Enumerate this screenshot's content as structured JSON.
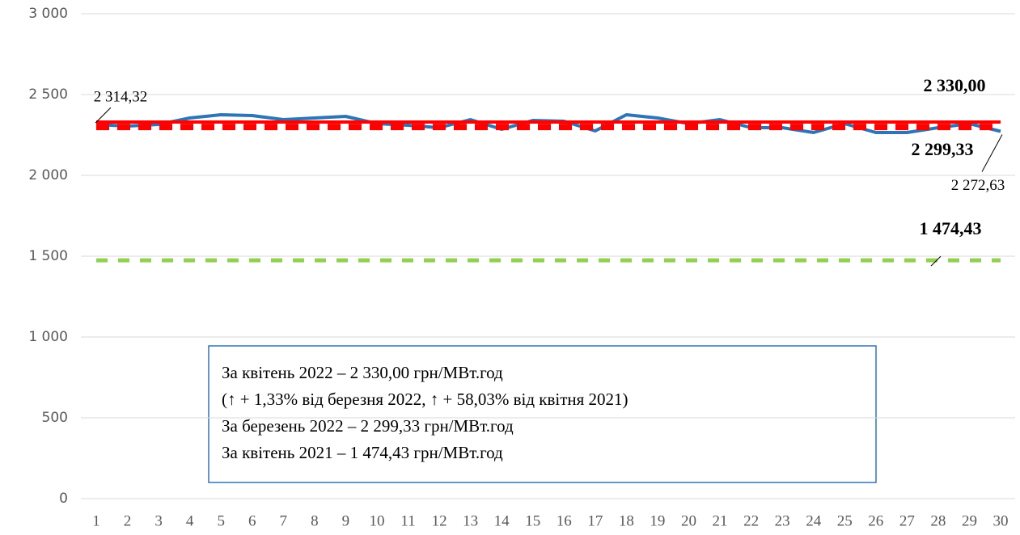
{
  "chart_data": {
    "type": "line",
    "categories": [
      1,
      2,
      3,
      4,
      5,
      6,
      7,
      8,
      9,
      10,
      11,
      12,
      13,
      14,
      15,
      16,
      17,
      18,
      19,
      20,
      21,
      22,
      23,
      24,
      25,
      26,
      27,
      28,
      29,
      30
    ],
    "ylim": [
      0,
      3000
    ],
    "yticks": [
      0,
      500,
      {
        "value": 1000,
        "label": "1 000"
      },
      {
        "value": 1500,
        "label": "1 500"
      },
      {
        "value": 2000,
        "label": "2 000"
      },
      {
        "value": 2500,
        "label": "2 500"
      },
      {
        "value": 3000,
        "label": "3 000"
      }
    ],
    "grid": true,
    "series": [
      {
        "color": "#2e75b6",
        "style": "solid",
        "values": [
          2314.32,
          2305,
          2315,
          2355,
          2375,
          2370,
          2345,
          2355,
          2365,
          2320,
          2310,
          2295,
          2345,
          2285,
          2340,
          2335,
          2275,
          2375,
          2355,
          2320,
          2345,
          2295,
          2295,
          2265,
          2320,
          2265,
          2265,
          2295,
          2320,
          2272.63
        ],
        "value_labels": [
          "2 314,32",
          null,
          null,
          null,
          null,
          null,
          null,
          null,
          null,
          null,
          null,
          null,
          null,
          null,
          null,
          null,
          null,
          null,
          null,
          null,
          null,
          null,
          null,
          null,
          null,
          null,
          null,
          null,
          null,
          "2 272,63"
        ]
      },
      {
        "color": "#ff0000",
        "style": "solid",
        "values": [
          2330,
          2330,
          2330,
          2330,
          2330,
          2330,
          2330,
          2330,
          2330,
          2330,
          2330,
          2330,
          2330,
          2330,
          2330,
          2330,
          2330,
          2330,
          2330,
          2330,
          2330,
          2330,
          2330,
          2330,
          2330,
          2330,
          2330,
          2330,
          2330,
          2330
        ],
        "value_labels": [
          null,
          null,
          null,
          null,
          null,
          null,
          null,
          null,
          null,
          null,
          null,
          null,
          null,
          null,
          null,
          null,
          null,
          null,
          null,
          null,
          null,
          null,
          null,
          null,
          null,
          null,
          null,
          null,
          null,
          "2 330,00"
        ]
      },
      {
        "color": "#ff0000",
        "style": "dashed",
        "values": [
          2299.33,
          2299.33,
          2299.33,
          2299.33,
          2299.33,
          2299.33,
          2299.33,
          2299.33,
          2299.33,
          2299.33,
          2299.33,
          2299.33,
          2299.33,
          2299.33,
          2299.33,
          2299.33,
          2299.33,
          2299.33,
          2299.33,
          2299.33,
          2299.33,
          2299.33,
          2299.33,
          2299.33,
          2299.33,
          2299.33,
          2299.33,
          2299.33,
          2299.33,
          2299.33
        ],
        "value_labels": [
          null,
          null,
          null,
          null,
          null,
          null,
          null,
          null,
          null,
          null,
          null,
          null,
          null,
          null,
          null,
          null,
          null,
          null,
          null,
          null,
          null,
          null,
          null,
          null,
          null,
          null,
          null,
          null,
          null,
          "2 299,33"
        ]
      },
      {
        "color": "#92d050",
        "style": "dashed",
        "values": [
          1474.43,
          1474.43,
          1474.43,
          1474.43,
          1474.43,
          1474.43,
          1474.43,
          1474.43,
          1474.43,
          1474.43,
          1474.43,
          1474.43,
          1474.43,
          1474.43,
          1474.43,
          1474.43,
          1474.43,
          1474.43,
          1474.43,
          1474.43,
          1474.43,
          1474.43,
          1474.43,
          1474.43,
          1474.43,
          1474.43,
          1474.43,
          1474.43,
          1474.43,
          1474.43
        ],
        "value_labels": [
          null,
          null,
          null,
          null,
          null,
          null,
          null,
          null,
          null,
          null,
          null,
          null,
          null,
          null,
          null,
          null,
          null,
          null,
          null,
          null,
          null,
          null,
          null,
          null,
          null,
          null,
          null,
          null,
          null,
          "1 474,43"
        ]
      }
    ],
    "annotations": [
      "За квітень 2022 – 2 330,00 грн/МВт.год",
      "(↑ + 1,33% від березня 2022, ↑ + 58,03% від квітня 2021)",
      "За березень 2022 – 2 299,33 грн/МВт.год",
      "За квітень 2021 – 1 474,43 грн/МВт.год"
    ]
  }
}
